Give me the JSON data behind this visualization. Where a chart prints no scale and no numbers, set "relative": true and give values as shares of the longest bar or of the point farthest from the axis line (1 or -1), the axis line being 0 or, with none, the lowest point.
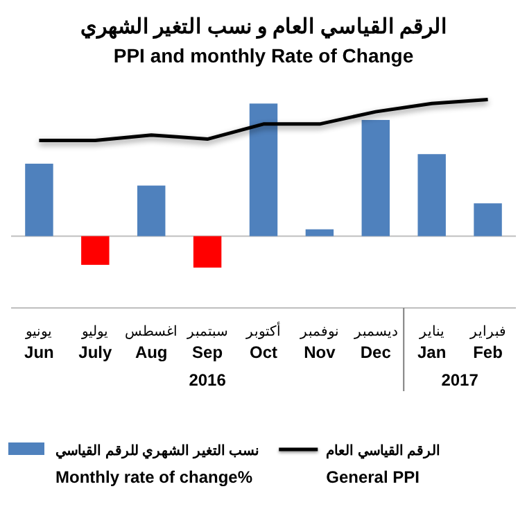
{
  "chart_data": {
    "type": "bar",
    "relative": true,
    "title": "الرقم القياسي العام و نسب التغير الشهري",
    "subtitle": "PPI and monthly Rate of Change",
    "categories": [
      "يونيو\nJun",
      "يوليو\nJuly",
      "اغسطس\nAug",
      "سبتمبر\nSep",
      "أكتوبر\nOct",
      "نوفمبر\nNov",
      "ديسمبر\nDec",
      "يناير\nJan",
      "فبراير\nFeb"
    ],
    "series": [
      {
        "name": "نسب التغير الشهري للرقم القياسي\nMonthly rate of change%",
        "color": "#4f81bd",
        "colors": [
          "#4f81bd",
          "#ff0000",
          "#4f81bd",
          "#ff0000",
          "#4f81bd",
          "#4f81bd",
          "#4f81bd",
          "#4f81bd",
          "#4f81bd"
        ],
        "values": [
          0.53,
          -0.21,
          0.37,
          -0.23,
          0.97,
          0.05,
          0.85,
          0.6,
          0.24
        ]
      },
      {
        "name": "الرقم القياسي العام\nGeneral PPI",
        "type": "line",
        "color": "#000000",
        "values": [
          0.7,
          0.7,
          0.74,
          0.71,
          0.82,
          0.82,
          0.91,
          0.97,
          1
        ]
      }
    ],
    "annotations": [
      "2016",
      "2017"
    ],
    "legend": "bottom",
    "marker": "none"
  }
}
